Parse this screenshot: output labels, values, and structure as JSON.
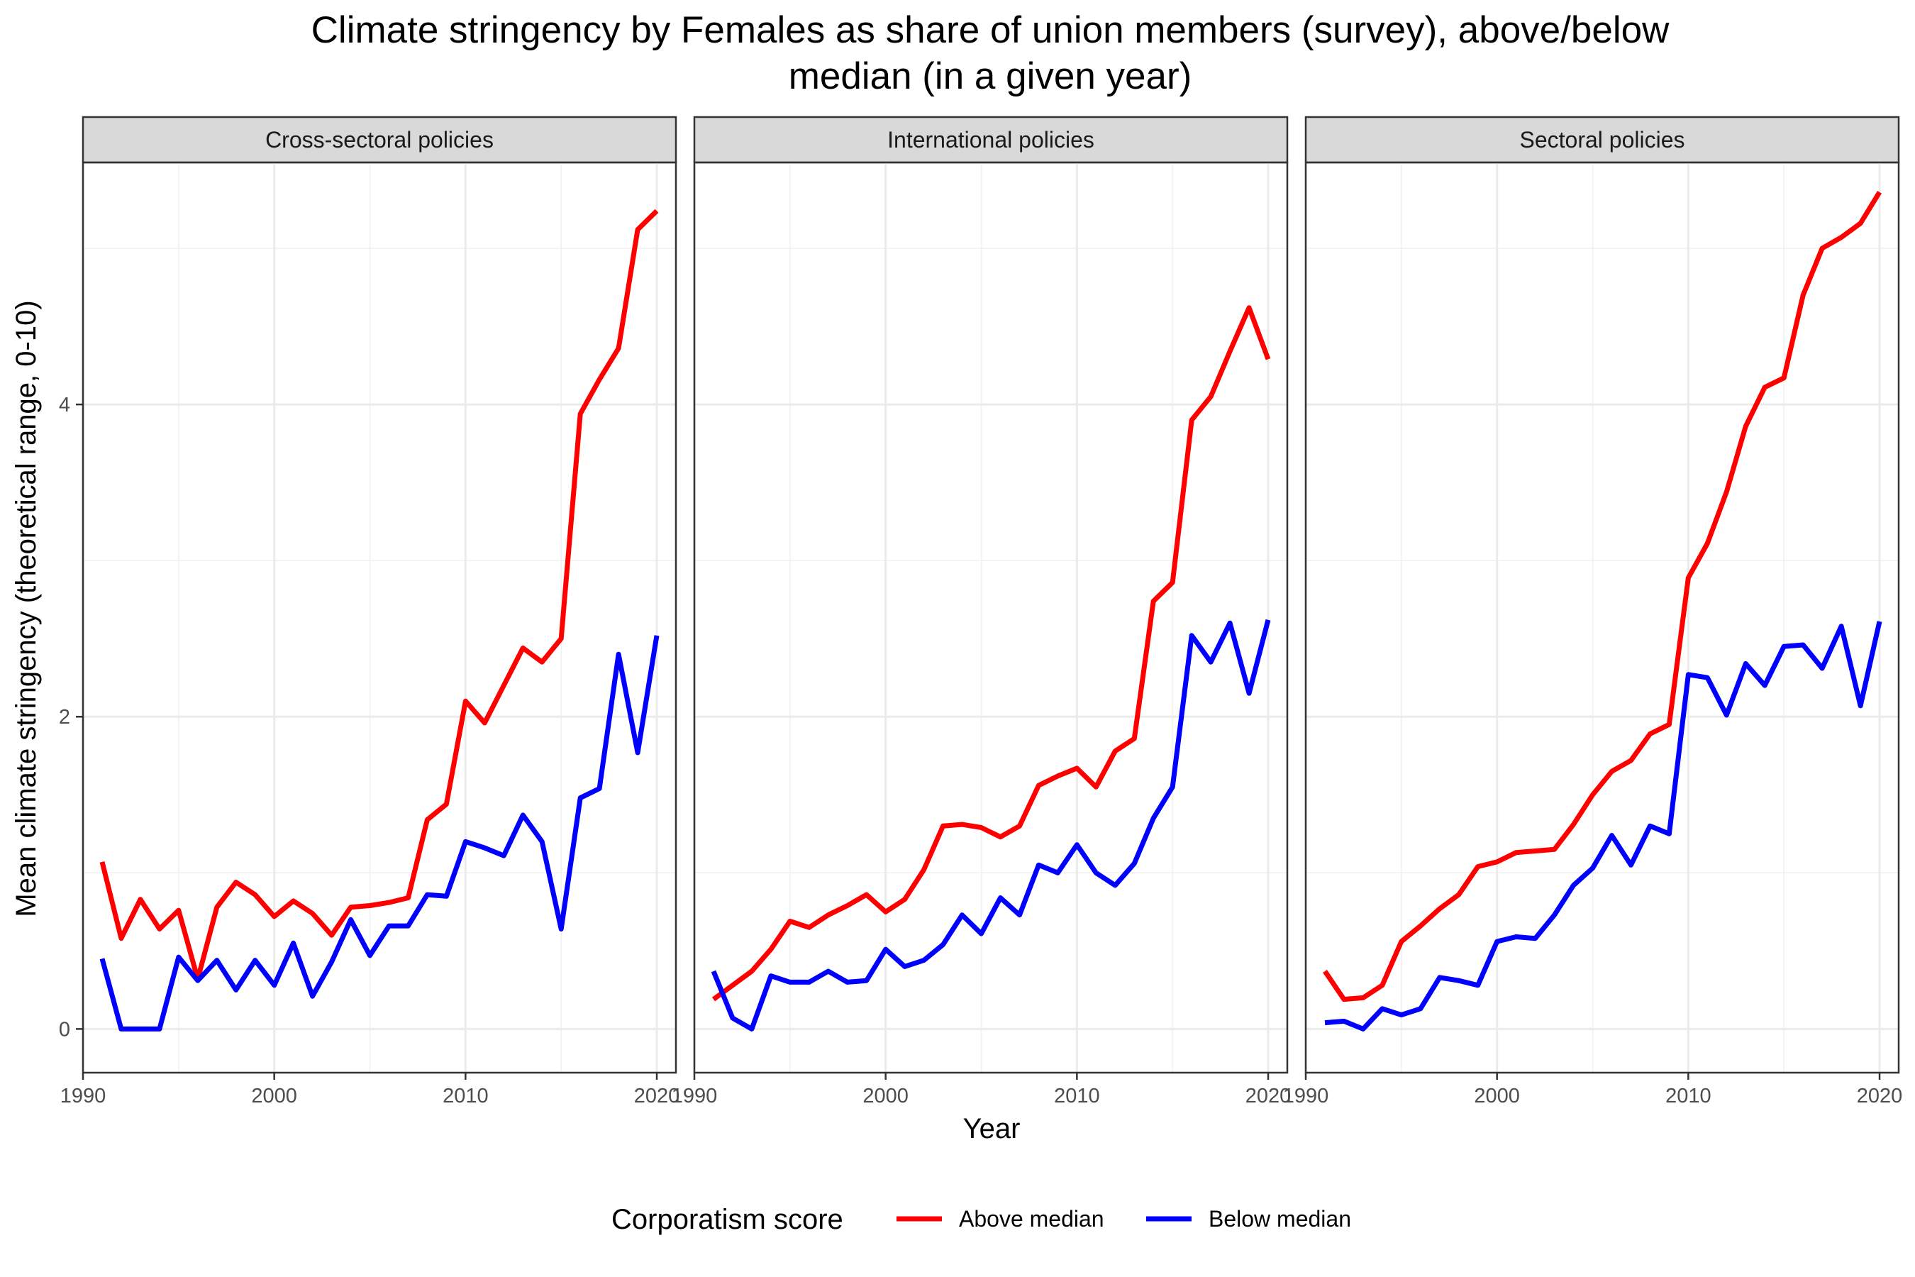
{
  "chart_data": {
    "type": "line",
    "title": "Climate stringency by Females as share of union members (survey), above/below median (in a given year)",
    "title_lines": [
      "Climate stringency by Females as share of union members (survey), above/below",
      "median (in a given year)"
    ],
    "xlabel": "Year",
    "ylabel": "Mean climate stringency (theoretical range, 0-10)",
    "xlim": [
      1990,
      2021
    ],
    "ylim": [
      -0.28,
      5.55
    ],
    "x_ticks": [
      1990,
      2000,
      2010,
      2020
    ],
    "y_ticks": [
      0,
      2,
      4
    ],
    "grid": true,
    "legend": {
      "title": "Corporatism score",
      "position": "bottom",
      "entries": [
        {
          "name": "Above median",
          "color": "#ff0000"
        },
        {
          "name": "Below median",
          "color": "#0000ff"
        }
      ]
    },
    "x": [
      1991,
      1992,
      1993,
      1994,
      1995,
      1996,
      1997,
      1998,
      1999,
      2000,
      2001,
      2002,
      2003,
      2004,
      2005,
      2006,
      2007,
      2008,
      2009,
      2010,
      2011,
      2012,
      2013,
      2014,
      2015,
      2016,
      2017,
      2018,
      2019,
      2020
    ],
    "panels": [
      {
        "title": "Cross-sectoral policies",
        "series": [
          {
            "name": "Above median",
            "color": "#ff0000",
            "values": [
              1.07,
              0.58,
              0.83,
              0.64,
              0.76,
              0.32,
              0.78,
              0.94,
              0.86,
              0.72,
              0.82,
              0.74,
              0.6,
              0.78,
              0.79,
              0.81,
              0.84,
              1.34,
              1.44,
              2.1,
              1.96,
              2.2,
              2.44,
              2.35,
              2.5,
              3.94,
              4.16,
              4.36,
              5.12,
              5.24
            ]
          },
          {
            "name": "Below median",
            "color": "#0000ff",
            "values": [
              0.45,
              0.0,
              0.0,
              0.0,
              0.46,
              0.31,
              0.44,
              0.25,
              0.44,
              0.28,
              0.55,
              0.21,
              0.43,
              0.7,
              0.47,
              0.66,
              0.66,
              0.86,
              0.85,
              1.2,
              1.16,
              1.11,
              1.37,
              1.2,
              0.64,
              1.48,
              1.54,
              2.4,
              1.77,
              2.52
            ]
          }
        ]
      },
      {
        "title": "International policies",
        "series": [
          {
            "name": "Above median",
            "color": "#ff0000",
            "values": [
              0.19,
              0.28,
              0.37,
              0.51,
              0.69,
              0.65,
              0.73,
              0.79,
              0.86,
              0.75,
              0.83,
              1.02,
              1.3,
              1.31,
              1.29,
              1.23,
              1.3,
              1.56,
              1.62,
              1.67,
              1.55,
              1.78,
              1.86,
              2.74,
              2.86,
              3.9,
              4.05,
              4.34,
              4.62,
              4.29
            ]
          },
          {
            "name": "Below median",
            "color": "#0000ff",
            "values": [
              0.37,
              0.07,
              0.0,
              0.34,
              0.3,
              0.3,
              0.37,
              0.3,
              0.31,
              0.51,
              0.4,
              0.44,
              0.54,
              0.73,
              0.61,
              0.84,
              0.73,
              1.05,
              1.0,
              1.18,
              1.0,
              0.92,
              1.06,
              1.35,
              1.55,
              2.52,
              2.35,
              2.6,
              2.15,
              2.62
            ]
          }
        ]
      },
      {
        "title": "Sectoral policies",
        "series": [
          {
            "name": "Above median",
            "color": "#ff0000",
            "values": [
              0.37,
              0.19,
              0.2,
              0.28,
              0.56,
              0.66,
              0.77,
              0.86,
              1.04,
              1.07,
              1.13,
              1.14,
              1.15,
              1.31,
              1.5,
              1.65,
              1.72,
              1.89,
              1.95,
              2.89,
              3.11,
              3.44,
              3.86,
              4.11,
              4.17,
              4.7,
              5.0,
              5.07,
              5.16,
              5.36
            ]
          },
          {
            "name": "Below median",
            "color": "#0000ff",
            "values": [
              0.04,
              0.05,
              0.0,
              0.13,
              0.09,
              0.13,
              0.33,
              0.31,
              0.28,
              0.56,
              0.59,
              0.58,
              0.73,
              0.92,
              1.03,
              1.24,
              1.05,
              1.3,
              1.25,
              2.27,
              2.25,
              2.01,
              2.34,
              2.2,
              2.45,
              2.46,
              2.31,
              2.58,
              2.07,
              2.61
            ]
          }
        ]
      }
    ]
  }
}
